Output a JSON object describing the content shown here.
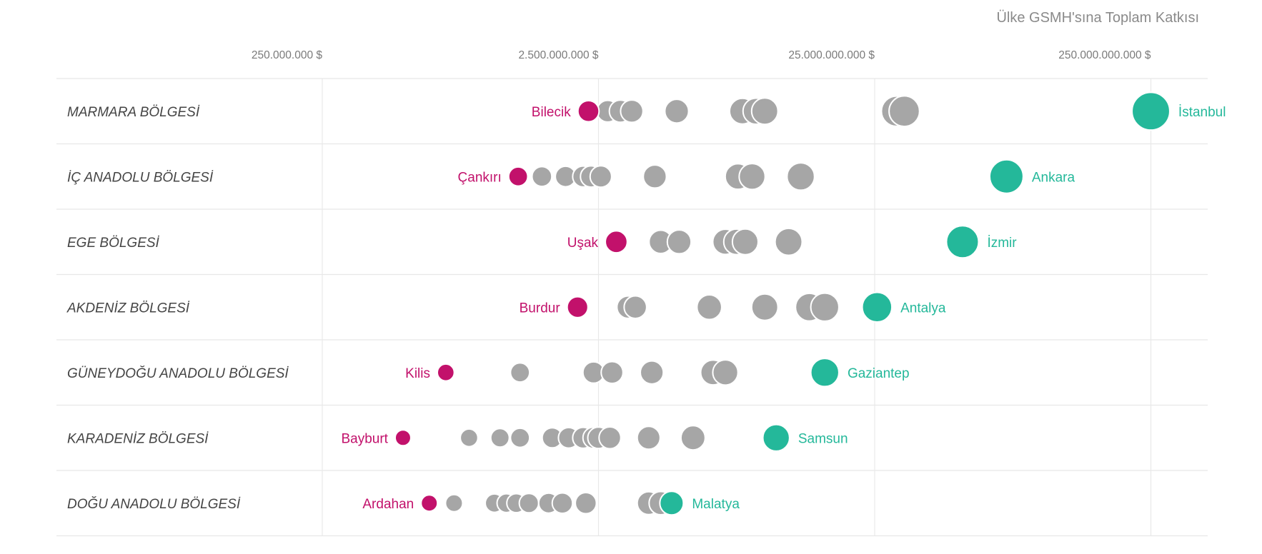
{
  "colors": {
    "min": "#c2116b",
    "max": "#24b89a",
    "other": "#a6a6a6",
    "stroke": "#ffffff",
    "grid": "#e8e8e8"
  },
  "chart_data": {
    "type": "scatter",
    "title": "Ülke GSMH'sına Toplam Katkısı",
    "x_scale": "log",
    "xlim": [
      60000000,
      400000000000
    ],
    "xticks": [
      250000000,
      2500000000,
      25000000000,
      250000000000
    ],
    "xtick_labels": [
      "250.000.000 $",
      "2.500.000.000 $",
      "25.000.000.000 $",
      "250.000.000.000 $"
    ],
    "rows": [
      {
        "region": "MARMARA BÖLGESİ",
        "min": {
          "name": "Bilecik",
          "value": 2300000000
        },
        "max": {
          "name": "İstanbul",
          "value": 250000000000
        },
        "others": [
          2700000000,
          3000000000,
          3300000000,
          4800000000,
          8300000000,
          9300000000,
          10000000000,
          32000000000,
          30000000000
        ]
      },
      {
        "region": "İÇ ANADOLU BÖLGESİ",
        "min": {
          "name": "Çankırı",
          "value": 1280000000
        },
        "max": {
          "name": "Ankara",
          "value": 75000000000
        },
        "others": [
          1560000000,
          1900000000,
          2200000000,
          2550000000,
          2350000000,
          4000000000,
          8000000000,
          9000000000,
          13500000000
        ]
      },
      {
        "region": "EGE BÖLGESİ",
        "min": {
          "name": "Uşak",
          "value": 2900000000
        },
        "max": {
          "name": "İzmir",
          "value": 52000000000
        },
        "others": [
          4200000000,
          4900000000,
          7200000000,
          8500000000,
          7900000000,
          12200000000
        ]
      },
      {
        "region": "AKDENİZ BÖLGESİ",
        "min": {
          "name": "Burdur",
          "value": 2100000000
        },
        "max": {
          "name": "Antalya",
          "value": 25500000000
        },
        "others": [
          3200000000,
          3400000000,
          6300000000,
          10000000000,
          16500000000,
          14500000000
        ]
      },
      {
        "region": "GÜNEYDOĞU ANADOLU BÖLGESİ",
        "min": {
          "name": "Kilis",
          "value": 700000000
        },
        "max": {
          "name": "Gaziantep",
          "value": 16500000000
        },
        "others": [
          1300000000,
          2400000000,
          2800000000,
          3900000000,
          7200000000,
          6500000000
        ]
      },
      {
        "region": "KARADENİZ BÖLGESİ",
        "min": {
          "name": "Bayburt",
          "value": 490000000
        },
        "max": {
          "name": "Samsun",
          "value": 11000000000
        },
        "others": [
          850000000,
          1100000000,
          1300000000,
          1700000000,
          1950000000,
          2200000000,
          2500000000,
          2750000000,
          2400000000,
          3800000000,
          5500000000
        ]
      },
      {
        "region": "DOĞU ANADOLU BÖLGESİ",
        "min": {
          "name": "Ardahan",
          "value": 610000000
        },
        "max": {
          "name": "Malatya",
          "value": 4600000000
        },
        "others": [
          750000000,
          1050000000,
          1160000000,
          1260000000,
          1400000000,
          1650000000,
          1850000000,
          2250000000,
          4200000000,
          3800000000
        ]
      }
    ]
  }
}
